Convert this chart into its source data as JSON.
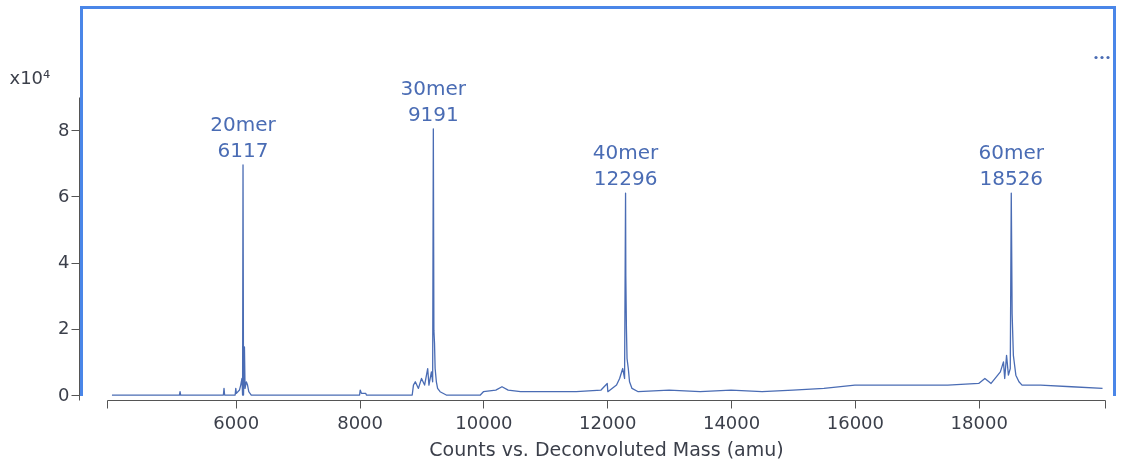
{
  "chart_data": {
    "type": "line",
    "xlabel": "Counts vs. Deconvoluted Mass (amu)",
    "ylabel": "x10⁴",
    "x": [
      4000,
      5090,
      5100,
      5110,
      5800,
      5810,
      5820,
      5990,
      6000,
      6010,
      6060,
      6080,
      6100,
      6110,
      6117,
      6125,
      6140,
      6150,
      6170,
      6190,
      6210,
      6250,
      8000,
      8010,
      8030,
      8100,
      8110,
      8850,
      8870,
      8900,
      8950,
      9000,
      9050,
      9100,
      9120,
      9160,
      9180,
      9191,
      9200,
      9210,
      9220,
      9240,
      9260,
      9300,
      9400,
      9950,
      10000,
      10200,
      10300,
      10400,
      10600,
      11000,
      11500,
      11900,
      12000,
      12010,
      12150,
      12200,
      12250,
      12280,
      12296,
      12300,
      12310,
      12320,
      12340,
      12360,
      12400,
      12500,
      13000,
      13500,
      14000,
      14500,
      15000,
      15500,
      16000,
      16500,
      17000,
      17500,
      18000,
      18100,
      18200,
      18350,
      18400,
      18420,
      18450,
      18480,
      18510,
      18526,
      18540,
      18560,
      18580,
      18600,
      18650,
      18700,
      19000,
      19500,
      20000
    ],
    "series": [
      {
        "color": "#4a6cb4",
        "values": [
          0,
          0,
          0.1,
          0,
          0,
          0.2,
          0,
          0,
          0.2,
          0.05,
          0.15,
          0.3,
          0.5,
          0,
          6.95,
          0,
          1.45,
          0.2,
          0.4,
          0.3,
          0.1,
          0,
          0,
          0.15,
          0.05,
          0.05,
          0,
          0,
          0.3,
          0.4,
          0.2,
          0.5,
          0.3,
          0.8,
          0.3,
          0.7,
          0.4,
          8.04,
          1.96,
          1.57,
          0.8,
          0.4,
          0.2,
          0.1,
          0,
          0,
          0.1,
          0.15,
          0.25,
          0.15,
          0.1,
          0.1,
          0.1,
          0.15,
          0.35,
          0.1,
          0.3,
          0.5,
          0.8,
          0.5,
          6.1,
          3.6,
          2.0,
          1.1,
          0.8,
          0.4,
          0.2,
          0.1,
          0.15,
          0.1,
          0.15,
          0.1,
          0.15,
          0.2,
          0.3,
          0.3,
          0.3,
          0.3,
          0.35,
          0.5,
          0.35,
          0.7,
          1.0,
          0.5,
          1.2,
          0.6,
          0.8,
          6.1,
          2.45,
          1.2,
          0.9,
          0.6,
          0.4,
          0.3,
          0.3,
          0.25,
          0.2
        ]
      }
    ],
    "xlim": [
      3920,
      20040
    ],
    "xticks": [
      {
        "value": 3920,
        "label": null
      },
      6000,
      8000,
      10000,
      12000,
      14000,
      16000,
      18000,
      {
        "value": 20040,
        "label": null
      }
    ],
    "ylim": [
      -0.15,
      9
    ],
    "yticks": [
      0,
      2,
      4,
      6,
      8
    ],
    "grid": false,
    "marker": "none",
    "line_style": "solid",
    "annotations": [
      {
        "text": "20mer\n6117",
        "x": 6117,
        "y": 6.95
      },
      {
        "text": "30mer\n9191",
        "x": 9191,
        "y": 8.04
      },
      {
        "text": "40mer\n12296",
        "x": 12296,
        "y": 6.1
      },
      {
        "text": "60mer\n18526",
        "x": 18526,
        "y": 6.1
      }
    ]
  }
}
